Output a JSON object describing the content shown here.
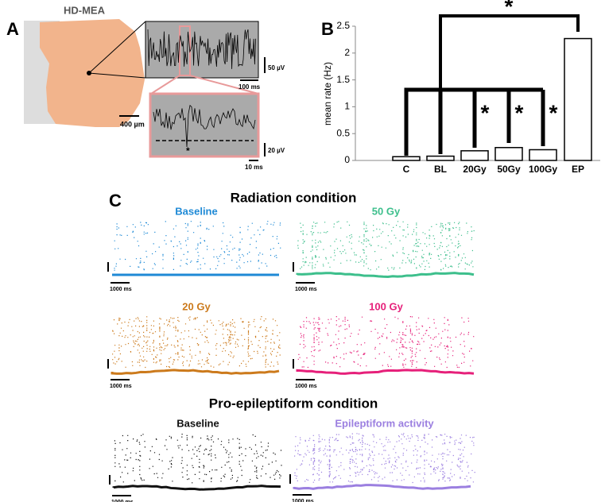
{
  "panels": {
    "a": "A",
    "b": "B",
    "c": "C"
  },
  "panel_a": {
    "title": "HD-MEA",
    "scale_tissue": "400 µm",
    "scale_v1": "50 µV",
    "scale_t1": "100 ms",
    "scale_v2": "20 µV",
    "scale_t2": "10 ms",
    "spike_mark": "*"
  },
  "chart_data": {
    "type": "bar",
    "y_label": "mean rate (Hz)",
    "categories": [
      "C",
      "BL",
      "20Gy",
      "50Gy",
      "100Gy",
      "EP"
    ],
    "values": [
      0.07,
      0.08,
      0.18,
      0.24,
      0.2,
      2.27
    ],
    "color": "#ffffff",
    "ylim": [
      0,
      2.5
    ],
    "yticks": [
      0,
      0.5,
      1,
      1.5,
      2,
      2.5
    ],
    "annotations": [
      "*",
      "*",
      "*",
      "*"
    ]
  },
  "panel_c": {
    "title_radiation": "Radiation condition",
    "title_epileptiform": "Pro-epileptiform condition",
    "rasters": [
      {
        "name": "Baseline",
        "color": "#1f8ad6",
        "scale": "1000 ms"
      },
      {
        "name": "50 Gy",
        "color": "#3dbf8c",
        "scale": "1000 ms"
      },
      {
        "name": "20 Gy",
        "color": "#cc7a1c",
        "scale": "1000 ms"
      },
      {
        "name": "100 Gy",
        "color": "#e6207a",
        "scale": "1000 ms"
      },
      {
        "name": "Baseline",
        "color": "#111111",
        "scale": "1000 ms"
      },
      {
        "name": "Epileptiform activity",
        "color": "#9b7fe0",
        "scale": "1000 ms"
      }
    ]
  }
}
